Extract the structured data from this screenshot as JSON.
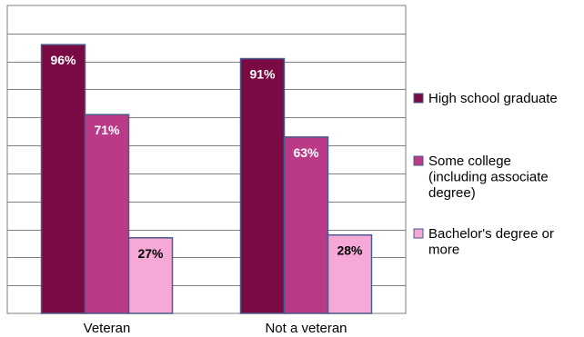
{
  "chart_data": {
    "type": "bar",
    "title": "",
    "xlabel": "",
    "ylabel": "",
    "ylim": [
      0,
      110
    ],
    "grid": true,
    "legend_placement": "right",
    "categories": [
      "Veteran",
      "Not a veteran"
    ],
    "series": [
      {
        "name": "High school graduate",
        "legend_lines": [
          "High school graduate"
        ],
        "values": [
          96,
          91
        ],
        "labels": [
          "96%",
          "91%"
        ],
        "color": "#7a0a43",
        "label_color": "#ffffff"
      },
      {
        "name": "Some college (including associate degree)",
        "legend_lines": [
          "Some college",
          "(including associate",
          "degree)"
        ],
        "values": [
          71,
          63
        ],
        "labels": [
          "71%",
          "63%"
        ],
        "color": "#bb3a87",
        "label_color": "#ffffff"
      },
      {
        "name": "Bachelor's degree or more",
        "legend_lines": [
          "Bachelor's degree or",
          "more"
        ],
        "values": [
          27,
          28
        ],
        "labels": [
          "27%",
          "28%"
        ],
        "color": "#f6a9d6",
        "label_color": "#000000"
      }
    ],
    "colors": {
      "bar_border": "#4a5a8a",
      "grid": "#7f7f7f",
      "frame": "#7f7f7f"
    }
  }
}
